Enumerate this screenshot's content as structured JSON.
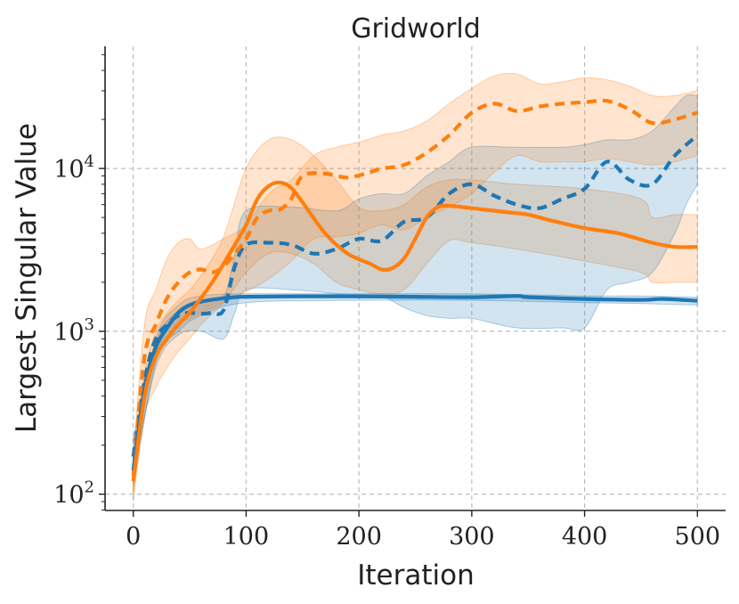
{
  "chart_data": {
    "type": "line",
    "title": "Gridworld",
    "xlabel": "Iteration",
    "ylabel": "Largest Singular Value",
    "xlim": [
      -25,
      525
    ],
    "ylim_log10": [
      1.9,
      4.75
    ],
    "yscale": "log",
    "grid": true,
    "xticks": [
      0,
      100,
      200,
      300,
      400,
      500
    ],
    "xtick_labels": [
      "0",
      "100",
      "200",
      "300",
      "400",
      "500"
    ],
    "yticks_major": [
      100,
      1000,
      10000
    ],
    "ytick_labels": [
      {
        "base": "10",
        "exp": "2"
      },
      {
        "base": "10",
        "exp": "3"
      },
      {
        "base": "10",
        "exp": "4"
      }
    ],
    "colors": {
      "blue": "#1f77b4",
      "orange": "#ff7f0e",
      "grid": "#bdbdbd",
      "axis": "#222222"
    },
    "series": [
      {
        "name": "blue-solid",
        "color": "#1f77b4",
        "style": "solid",
        "x": [
          0,
          10,
          20,
          30,
          40,
          50,
          60,
          75,
          90,
          100,
          150,
          200,
          250,
          300,
          340,
          350,
          400,
          450,
          470,
          500
        ],
        "y": [
          140,
          450,
          800,
          1050,
          1300,
          1450,
          1520,
          1580,
          1620,
          1630,
          1640,
          1640,
          1630,
          1620,
          1650,
          1620,
          1580,
          1560,
          1580,
          1540
        ]
      },
      {
        "name": "orange-solid",
        "color": "#ff7f0e",
        "style": "solid",
        "x": [
          0,
          10,
          20,
          30,
          40,
          50,
          60,
          70,
          80,
          90,
          100,
          110,
          120,
          130,
          140,
          150,
          170,
          190,
          210,
          220,
          230,
          240,
          250,
          260,
          270,
          280,
          300,
          330,
          350,
          370,
          400,
          430,
          460,
          480,
          500
        ],
        "y": [
          120,
          400,
          700,
          900,
          1100,
          1300,
          1600,
          2000,
          2600,
          3400,
          4500,
          6500,
          7800,
          8200,
          7600,
          6200,
          4000,
          3000,
          2600,
          2400,
          2450,
          2800,
          3700,
          5000,
          5800,
          5900,
          5700,
          5400,
          5200,
          4800,
          4300,
          4000,
          3500,
          3300,
          3300
        ]
      },
      {
        "name": "blue-dashed",
        "color": "#1f77b4",
        "style": "dashed",
        "x": [
          0,
          10,
          20,
          30,
          40,
          50,
          60,
          70,
          80,
          90,
          100,
          120,
          140,
          160,
          180,
          200,
          220,
          240,
          260,
          280,
          300,
          320,
          340,
          360,
          380,
          400,
          420,
          440,
          460,
          480,
          500
        ],
        "y": [
          170,
          500,
          900,
          1100,
          1250,
          1300,
          1280,
          1300,
          1350,
          2500,
          3400,
          3500,
          3400,
          3000,
          3200,
          3700,
          3600,
          4700,
          5000,
          7000,
          8000,
          6800,
          6000,
          5700,
          6500,
          7500,
          11000,
          8500,
          8000,
          12000,
          16000
        ]
      },
      {
        "name": "orange-dashed",
        "color": "#ff7f0e",
        "style": "dashed",
        "x": [
          0,
          10,
          20,
          30,
          40,
          50,
          60,
          70,
          80,
          90,
          100,
          110,
          120,
          130,
          140,
          150,
          170,
          190,
          210,
          220,
          240,
          260,
          280,
          300,
          320,
          340,
          360,
          380,
          400,
          420,
          440,
          460,
          480,
          500
        ],
        "y": [
          130,
          700,
          1100,
          1600,
          2000,
          2300,
          2400,
          2300,
          2500,
          3000,
          3700,
          5000,
          5500,
          5600,
          6500,
          9000,
          9300,
          8800,
          9500,
          10000,
          10500,
          12500,
          16000,
          22000,
          25000,
          22500,
          24000,
          25000,
          25500,
          26000,
          23000,
          19000,
          20000,
          22000
        ]
      }
    ],
    "bands": [
      {
        "name": "blue-solid-band",
        "color": "#1f77b4",
        "x": [
          0,
          20,
          40,
          60,
          100,
          200,
          300,
          400,
          450,
          500
        ],
        "lo": [
          110,
          650,
          1000,
          1250,
          1500,
          1550,
          1550,
          1500,
          1480,
          1450
        ],
        "hi": [
          180,
          900,
          1450,
          1650,
          1700,
          1700,
          1700,
          1650,
          1650,
          1620
        ]
      },
      {
        "name": "orange-solid-band",
        "color": "#ff7f0e",
        "x": [
          0,
          10,
          20,
          30,
          40,
          50,
          60,
          80,
          100,
          120,
          140,
          160,
          180,
          200,
          220,
          240,
          260,
          280,
          300,
          340,
          400,
          450,
          460,
          480,
          500
        ],
        "lo": [
          90,
          300,
          450,
          600,
          750,
          900,
          1100,
          1500,
          2300,
          3000,
          3000,
          2600,
          2000,
          1800,
          1700,
          1800,
          2600,
          3600,
          3500,
          3200,
          2700,
          2300,
          2000,
          2000,
          2000
        ],
        "hi": [
          150,
          550,
          1000,
          1300,
          1550,
          1800,
          2200,
          3800,
          10000,
          15000,
          15000,
          12000,
          8500,
          5800,
          5500,
          6000,
          7700,
          8500,
          8500,
          8000,
          7500,
          6500,
          5000,
          5200,
          5200
        ]
      },
      {
        "name": "blue-dashed-band",
        "color": "#1f77b4",
        "x": [
          0,
          20,
          40,
          60,
          80,
          90,
          100,
          140,
          180,
          200,
          220,
          240,
          260,
          280,
          300,
          340,
          380,
          400,
          420,
          440,
          460,
          480,
          490,
          500
        ],
        "lo": [
          130,
          600,
          950,
          1000,
          900,
          1300,
          1800,
          1800,
          1700,
          1600,
          1650,
          1400,
          1250,
          1200,
          1200,
          1050,
          1050,
          1050,
          1800,
          2000,
          2300,
          4000,
          6000,
          8000
        ],
        "hi": [
          220,
          850,
          1350,
          1550,
          1650,
          3000,
          5500,
          5800,
          5500,
          6500,
          7000,
          7000,
          9000,
          11000,
          13500,
          13500,
          13500,
          14000,
          15000,
          15000,
          17000,
          24000,
          28000,
          28000
        ]
      },
      {
        "name": "orange-dashed-band",
        "color": "#ff7f0e",
        "x": [
          0,
          10,
          20,
          30,
          40,
          50,
          60,
          80,
          100,
          120,
          140,
          160,
          180,
          200,
          220,
          240,
          260,
          280,
          300,
          320,
          340,
          360,
          380,
          400,
          420,
          440,
          460,
          480,
          500
        ],
        "lo": [
          100,
          400,
          650,
          900,
          1100,
          1200,
          1300,
          1500,
          1750,
          2100,
          2700,
          3700,
          3800,
          4000,
          4500,
          4200,
          5000,
          5800,
          7000,
          9500,
          12000,
          11000,
          11000,
          11000,
          11500,
          11000,
          10500,
          11000,
          12000
        ],
        "hi": [
          170,
          1100,
          1800,
          2800,
          3500,
          3700,
          3200,
          3700,
          4500,
          7000,
          8500,
          12000,
          13500,
          14500,
          16000,
          17000,
          19500,
          25000,
          31000,
          37000,
          38000,
          33000,
          34000,
          36000,
          35000,
          32000,
          28000,
          28000,
          30000
        ]
      }
    ]
  }
}
